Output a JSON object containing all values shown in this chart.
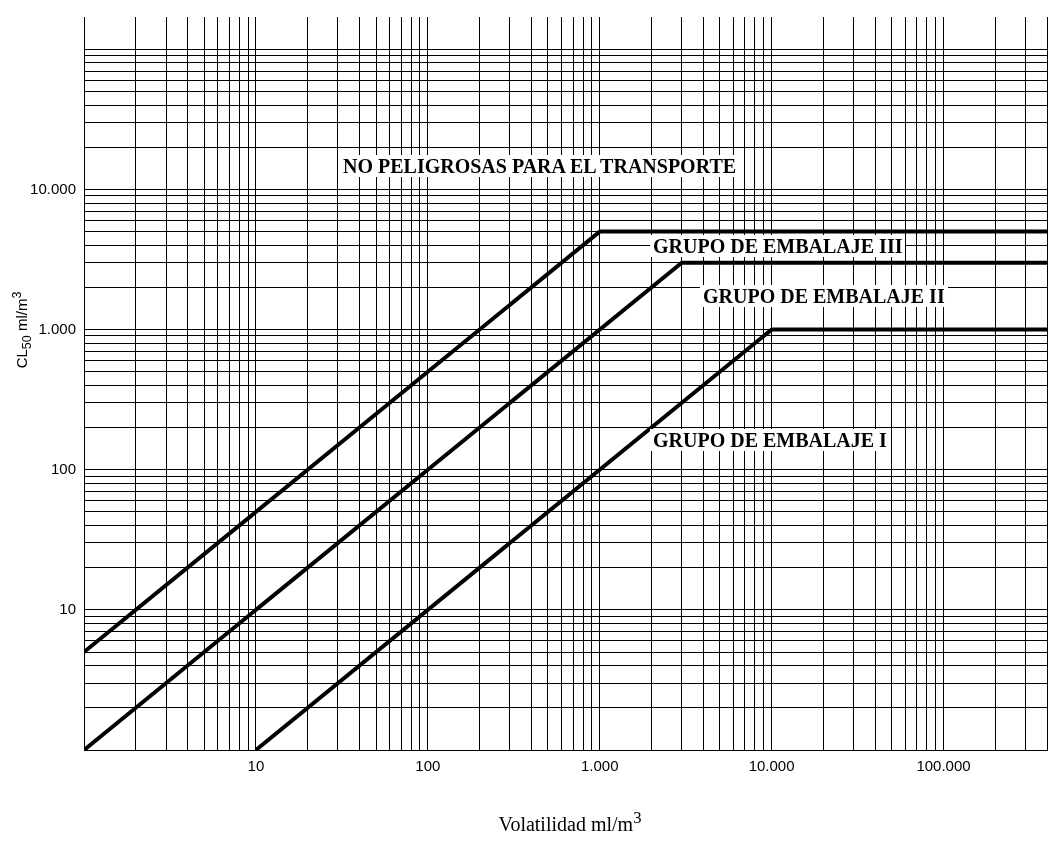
{
  "chart_data": {
    "type": "line",
    "xlabel": "Volatilidad ml/m$^{3}$",
    "ylabel": "CL$_{50}$ ml/m$^{3}$",
    "log": "xy",
    "grid": true,
    "marker": "none",
    "line_style": "solid",
    "legend": false,
    "xlim": [
      1,
      400000
    ],
    "ylim": [
      1,
      170000
    ],
    "xticks": [
      {
        "value": 2,
        "label": null
      },
      {
        "value": 3,
        "label": null
      },
      {
        "value": 4,
        "label": null
      },
      {
        "value": 5,
        "label": null
      },
      {
        "value": 6,
        "label": null
      },
      {
        "value": 7,
        "label": null
      },
      {
        "value": 8,
        "label": null
      },
      {
        "value": 9,
        "label": null
      },
      10,
      {
        "value": 20,
        "label": null
      },
      {
        "value": 30,
        "label": null
      },
      {
        "value": 40,
        "label": null
      },
      {
        "value": 50,
        "label": null
      },
      {
        "value": 60,
        "label": null
      },
      {
        "value": 70,
        "label": null
      },
      {
        "value": 80,
        "label": null
      },
      {
        "value": 90,
        "label": null
      },
      100,
      {
        "value": 200,
        "label": null
      },
      {
        "value": 300,
        "label": null
      },
      {
        "value": 400,
        "label": null
      },
      {
        "value": 500,
        "label": null
      },
      {
        "value": 600,
        "label": null
      },
      {
        "value": 700,
        "label": null
      },
      {
        "value": 800,
        "label": null
      },
      {
        "value": 900,
        "label": null
      },
      {
        "value": 1000,
        "label": "1.000"
      },
      {
        "value": 2000,
        "label": null
      },
      {
        "value": 3000,
        "label": null
      },
      {
        "value": 4000,
        "label": null
      },
      {
        "value": 5000,
        "label": null
      },
      {
        "value": 6000,
        "label": null
      },
      {
        "value": 7000,
        "label": null
      },
      {
        "value": 8000,
        "label": null
      },
      {
        "value": 9000,
        "label": null
      },
      {
        "value": 10000,
        "label": "10.000"
      },
      {
        "value": 20000,
        "label": null
      },
      {
        "value": 30000,
        "label": null
      },
      {
        "value": 40000,
        "label": null
      },
      {
        "value": 50000,
        "label": null
      },
      {
        "value": 60000,
        "label": null
      },
      {
        "value": 70000,
        "label": null
      },
      {
        "value": 80000,
        "label": null
      },
      {
        "value": 90000,
        "label": null
      },
      {
        "value": 100000,
        "label": "100.000"
      },
      {
        "value": 200000,
        "label": null
      },
      {
        "value": 300000,
        "label": null
      },
      {
        "value": 400000,
        "label": null
      }
    ],
    "yticks": [
      {
        "value": 2,
        "label": null
      },
      {
        "value": 3,
        "label": null
      },
      {
        "value": 4,
        "label": null
      },
      {
        "value": 5,
        "label": null
      },
      {
        "value": 6,
        "label": null
      },
      {
        "value": 7,
        "label": null
      },
      {
        "value": 8,
        "label": null
      },
      {
        "value": 9,
        "label": null
      },
      10,
      {
        "value": 20,
        "label": null
      },
      {
        "value": 30,
        "label": null
      },
      {
        "value": 40,
        "label": null
      },
      {
        "value": 50,
        "label": null
      },
      {
        "value": 60,
        "label": null
      },
      {
        "value": 70,
        "label": null
      },
      {
        "value": 80,
        "label": null
      },
      {
        "value": 90,
        "label": null
      },
      100,
      {
        "value": 200,
        "label": null
      },
      {
        "value": 300,
        "label": null
      },
      {
        "value": 400,
        "label": null
      },
      {
        "value": 500,
        "label": null
      },
      {
        "value": 600,
        "label": null
      },
      {
        "value": 700,
        "label": null
      },
      {
        "value": 800,
        "label": null
      },
      {
        "value": 900,
        "label": null
      },
      {
        "value": 1000,
        "label": "1.000"
      },
      {
        "value": 2000,
        "label": null
      },
      {
        "value": 3000,
        "label": null
      },
      {
        "value": 4000,
        "label": null
      },
      {
        "value": 5000,
        "label": null
      },
      {
        "value": 6000,
        "label": null
      },
      {
        "value": 7000,
        "label": null
      },
      {
        "value": 8000,
        "label": null
      },
      {
        "value": 9000,
        "label": null
      },
      {
        "value": 10000,
        "label": "10.000"
      },
      {
        "value": 20000,
        "label": null
      },
      {
        "value": 30000,
        "label": null
      },
      {
        "value": 40000,
        "label": null
      },
      {
        "value": 50000,
        "label": null
      },
      {
        "value": 60000,
        "label": null
      },
      {
        "value": 70000,
        "label": null
      },
      {
        "value": 80000,
        "label": null
      },
      {
        "value": 90000,
        "label": null
      },
      {
        "value": 100000,
        "label": null
      }
    ],
    "series": [
      {
        "color": "#000000",
        "x": [
          1,
          1000,
          400000
        ],
        "values": [
          5,
          5000,
          5000
        ]
      },
      {
        "color": "#000000",
        "x": [
          1,
          3000,
          400000
        ],
        "values": [
          1,
          3000,
          3000
        ]
      },
      {
        "color": "#000000",
        "x": [
          10,
          10000,
          400000
        ],
        "values": [
          1,
          1000,
          1000
        ]
      }
    ],
    "annotations": [
      "NO PELIGROSAS PARA EL TRANSPORTE",
      "GRUPO DE EMBALAJE III",
      "GRUPO DE EMBALAJE II",
      "GRUPO DE EMBALAJE I"
    ]
  }
}
